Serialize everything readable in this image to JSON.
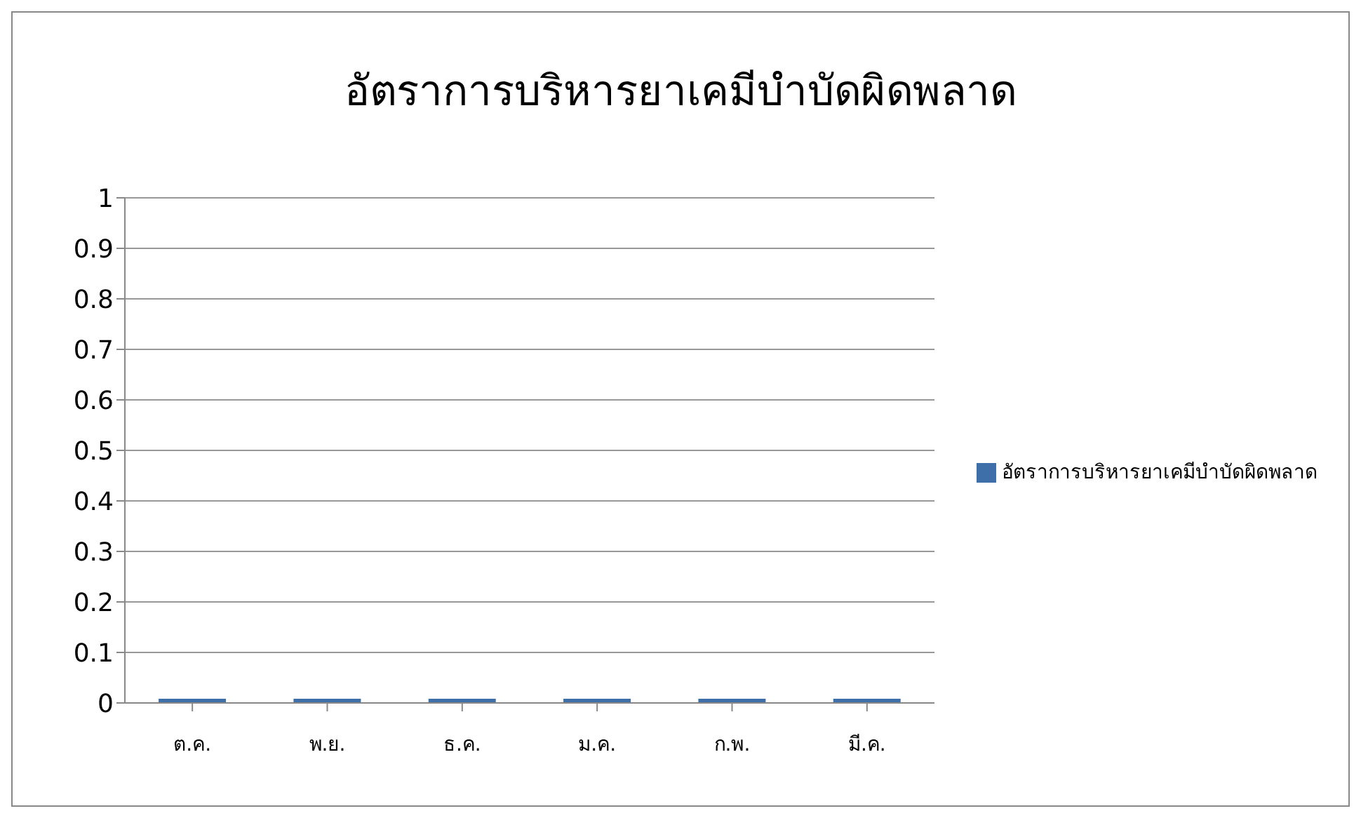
{
  "chart_data": {
    "type": "bar",
    "title": "อัตราการบริหารยาเคมีบำบัดผิดพลาด",
    "categories": [
      "ต.ค.",
      "พ.ย.",
      "ธ.ค.",
      "ม.ค.",
      "ก.พ.",
      "มี.ค."
    ],
    "series": [
      {
        "name": "อัตราการบริหารยาเคมีบำบัดผิดพลาด",
        "color": "#3f6fa8",
        "values": [
          0,
          0,
          0,
          0,
          0,
          0
        ]
      }
    ],
    "ylim": [
      0,
      1
    ],
    "yticks": [
      0,
      0.1,
      0.2,
      0.3,
      0.4,
      0.5,
      0.6,
      0.7,
      0.8,
      0.9,
      1
    ],
    "grid": "y",
    "legend": "right"
  }
}
